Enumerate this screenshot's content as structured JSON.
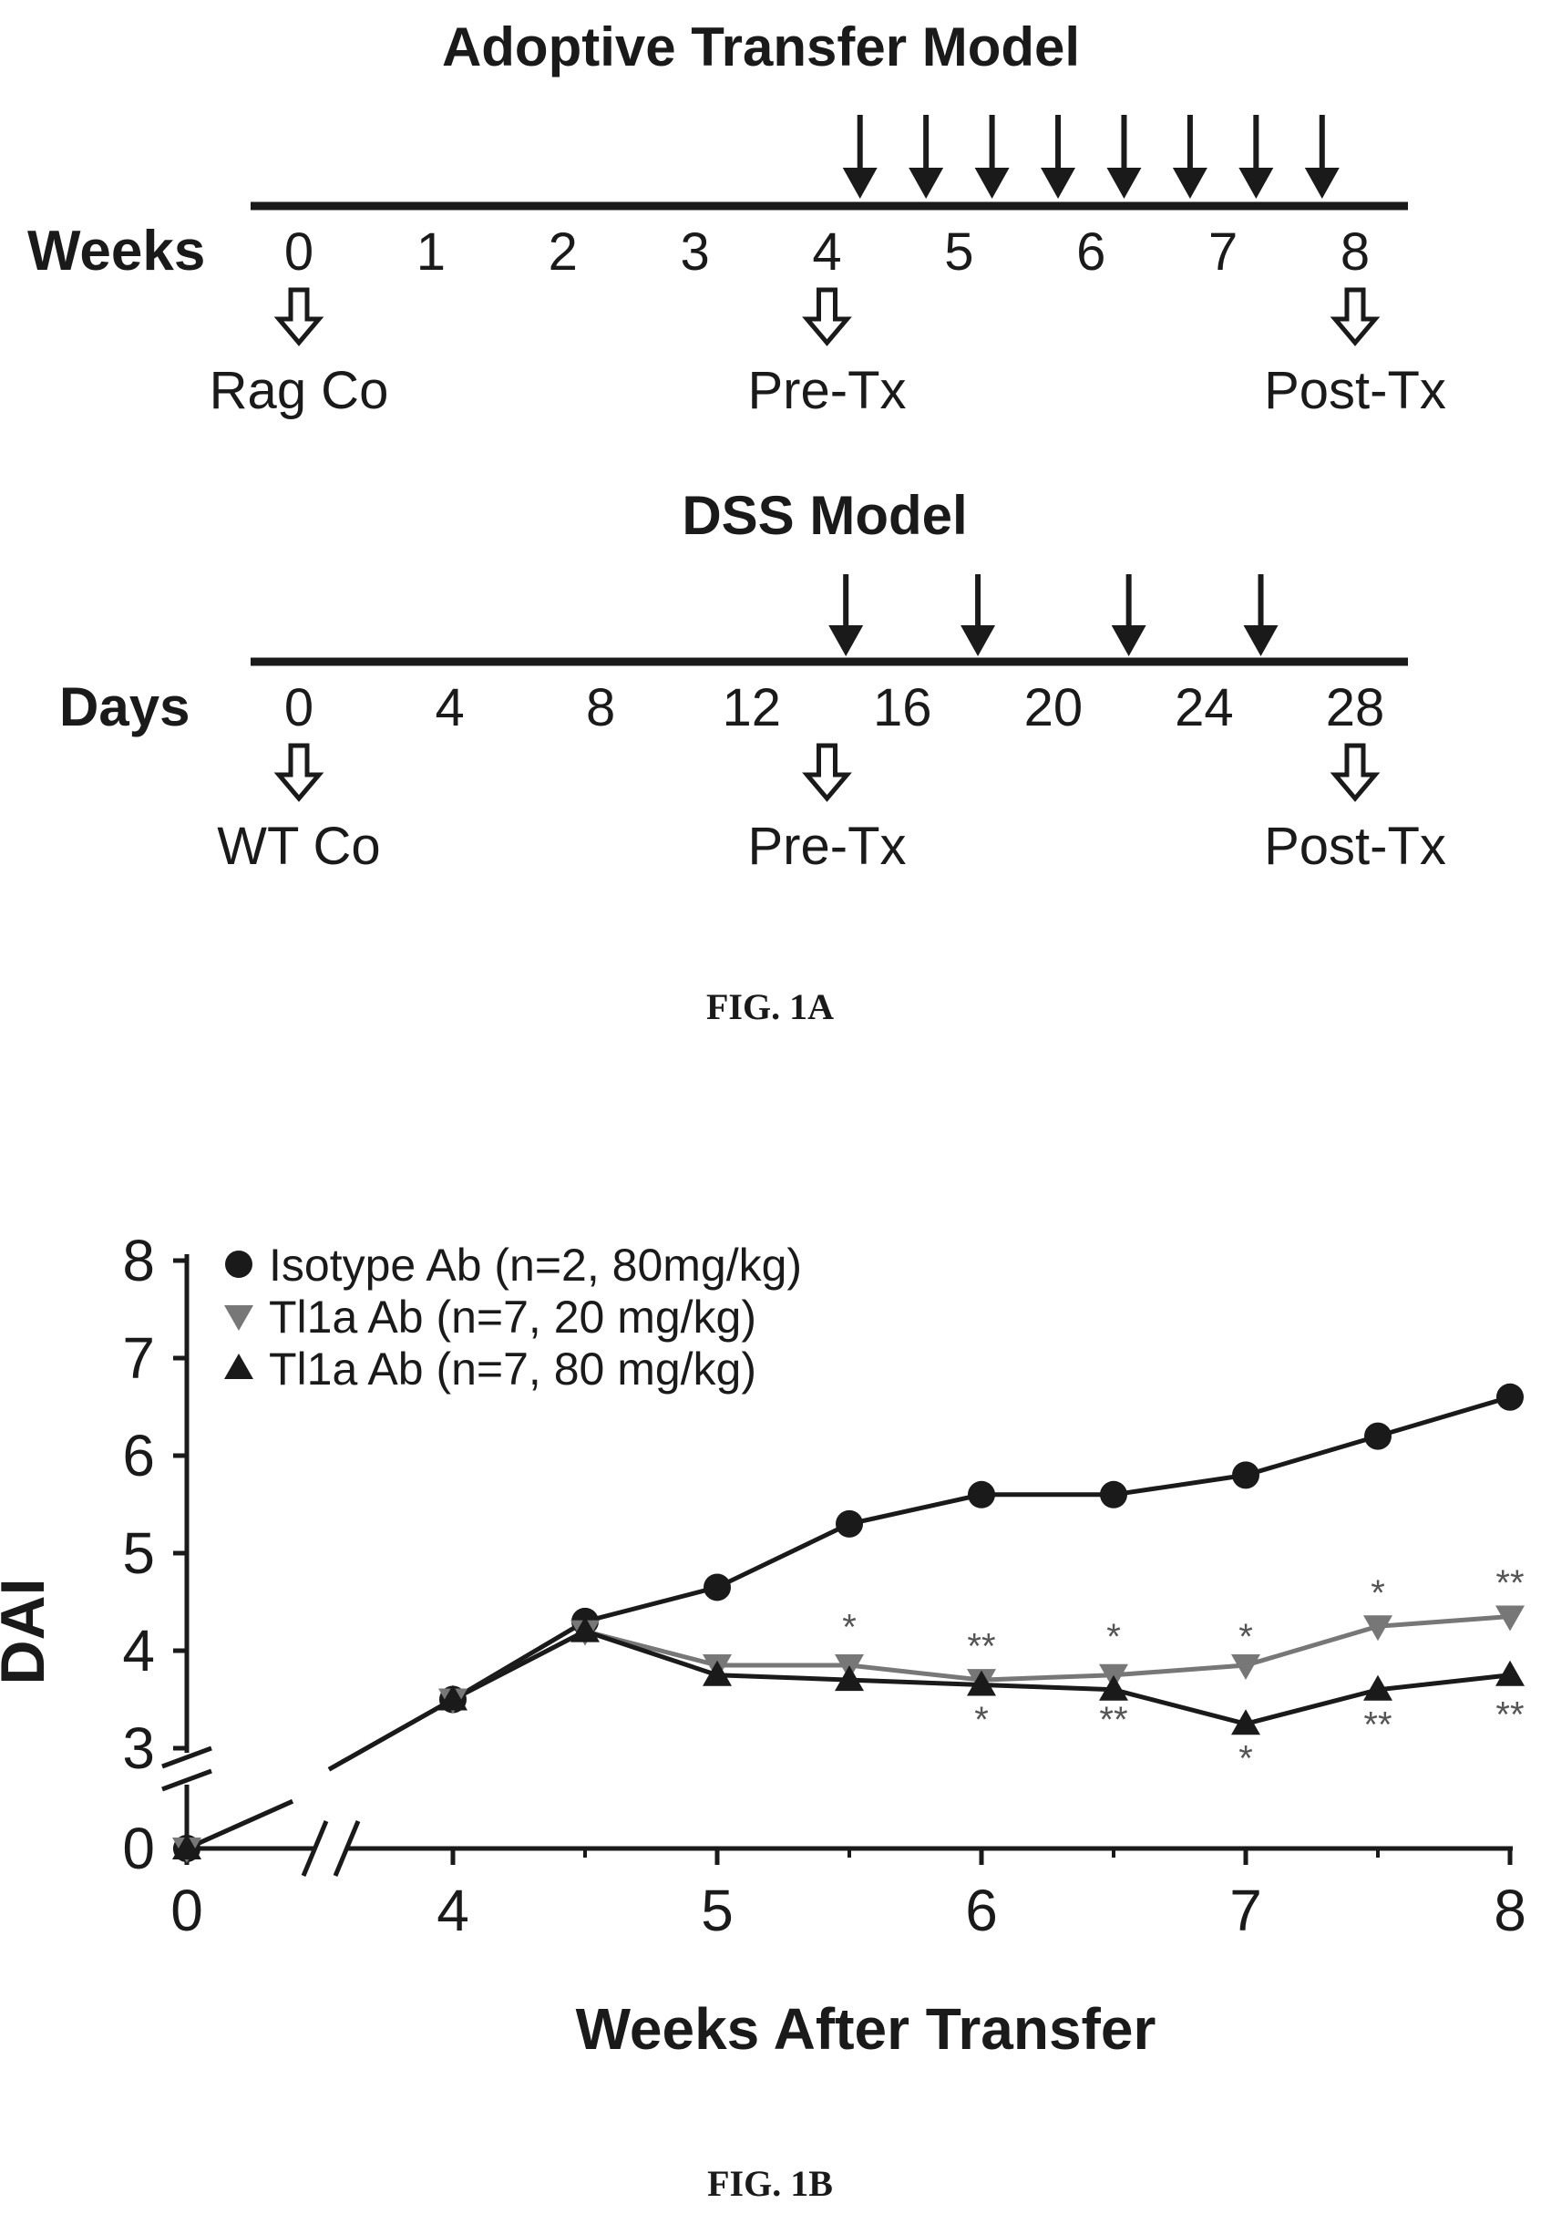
{
  "fig1a": {
    "adoptive": {
      "title": "Adoptive Transfer Model",
      "axis_label": "Weeks",
      "ticks": [
        "0",
        "1",
        "2",
        "3",
        "4",
        "5",
        "6",
        "7",
        "8"
      ],
      "tick_values": [
        0,
        1,
        2,
        3,
        4,
        5,
        6,
        7,
        8
      ],
      "treatment_weeks": [
        4.25,
        4.75,
        5.25,
        5.75,
        6.25,
        6.75,
        7.25,
        7.75
      ],
      "timepoints": [
        {
          "value": 0,
          "label": "Rag Co"
        },
        {
          "value": 4,
          "label": "Pre-Tx"
        },
        {
          "value": 8,
          "label": "Post-Tx"
        }
      ]
    },
    "dss": {
      "title": "DSS Model",
      "axis_label": "Days",
      "ticks": [
        "0",
        "4",
        "8",
        "12",
        "16",
        "20",
        "24",
        "28"
      ],
      "tick_values": [
        0,
        4,
        8,
        12,
        16,
        20,
        24,
        28
      ],
      "treatment_days": [
        14.5,
        18,
        22,
        25.5
      ],
      "timepoints": [
        {
          "value": 0,
          "label": "WT Co"
        },
        {
          "value": 14,
          "label": "Pre-Tx"
        },
        {
          "value": 28,
          "label": "Post-Tx"
        }
      ]
    },
    "caption": "FIG. 1A"
  },
  "chart_data": {
    "type": "line",
    "xlabel": "Weeks After Transfer",
    "ylabel": "DAI",
    "x_ticks": [
      "0",
      "4",
      "5",
      "6",
      "7",
      "8"
    ],
    "y_ticks": [
      "0",
      "3",
      "4",
      "5",
      "6",
      "7",
      "8"
    ],
    "ylim": [
      0,
      8
    ],
    "axis_breaks": [
      "x between 0 and 4",
      "y between 0 and 3"
    ],
    "legend_position": "top-left",
    "series": [
      {
        "name": "Isotype Ab (n=2, 80mg/kg)",
        "marker": "circle",
        "x": [
          0,
          4,
          4.5,
          5,
          5.5,
          6,
          6.5,
          7,
          7.5,
          8
        ],
        "y": [
          0,
          3.5,
          4.3,
          4.65,
          5.3,
          5.6,
          5.6,
          5.8,
          6.2,
          6.6
        ]
      },
      {
        "name": "Tl1a Ab (n=7, 20 mg/kg)",
        "marker": "triangle-down",
        "x": [
          0,
          4,
          4.5,
          5,
          5.5,
          6,
          6.5,
          7,
          7.5,
          8
        ],
        "y": [
          0,
          3.5,
          4.2,
          3.85,
          3.85,
          3.7,
          3.75,
          3.85,
          4.25,
          4.35
        ]
      },
      {
        "name": "Tl1a Ab (n=7, 80 mg/kg)",
        "marker": "triangle-up",
        "x": [
          0,
          4,
          4.5,
          5,
          5.5,
          6,
          6.5,
          7,
          7.5,
          8
        ],
        "y": [
          0,
          3.5,
          4.2,
          3.75,
          3.7,
          3.65,
          3.6,
          3.25,
          3.6,
          3.75
        ]
      }
    ],
    "annotations": [
      {
        "x": 5.5,
        "y": 4.25,
        "text": "*"
      },
      {
        "x": 6,
        "y": 4.05,
        "text": "**"
      },
      {
        "x": 6.5,
        "y": 4.15,
        "text": "*"
      },
      {
        "x": 7,
        "y": 4.15,
        "text": "*"
      },
      {
        "x": 7.5,
        "y": 4.6,
        "text": "*"
      },
      {
        "x": 8,
        "y": 4.7,
        "text": "**"
      },
      {
        "x": 6,
        "y": 3.3,
        "text": "*"
      },
      {
        "x": 6.5,
        "y": 3.3,
        "text": "**"
      },
      {
        "x": 7,
        "y": 2.9,
        "text": "*"
      },
      {
        "x": 7.5,
        "y": 3.25,
        "text": "**"
      },
      {
        "x": 8,
        "y": 3.35,
        "text": "**"
      }
    ]
  },
  "fig1b_caption": "FIG. 1B",
  "colors": {
    "ink": "#1a1a1a",
    "grey_marker": "#777777"
  }
}
